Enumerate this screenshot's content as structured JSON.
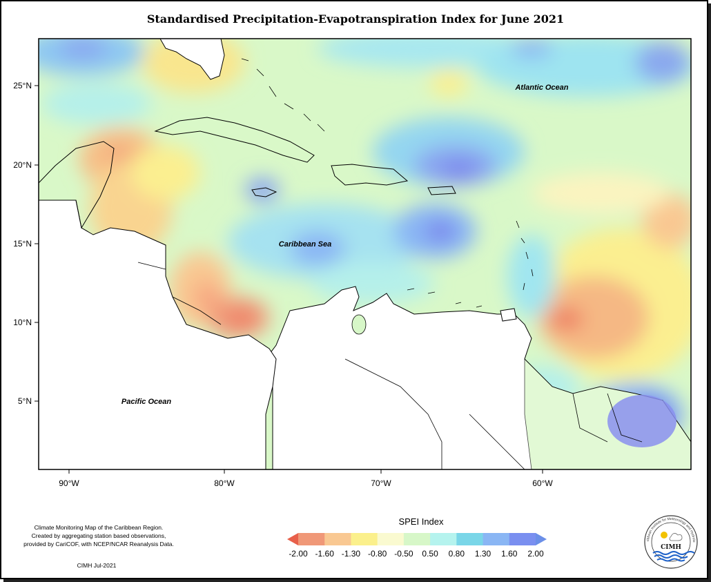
{
  "title": "Standardised Precipitation-Evapotranspiration Index for June 2021",
  "axes": {
    "latitude_labels": [
      "25°N",
      "20°N",
      "15°N",
      "10°N",
      "5°N"
    ],
    "longitude_labels": [
      "90°W",
      "80°W",
      "70°W",
      "60°W"
    ]
  },
  "regions": {
    "atlantic": "Atlantic Ocean",
    "caribbean": "Caribbean Sea",
    "pacific": "Pacific Ocean"
  },
  "legend": {
    "title": "SPEI Index",
    "ticks": [
      "-2.00",
      "-1.60",
      "-1.30",
      "-0.80",
      "-0.50",
      "0.50",
      "0.80",
      "1.30",
      "1.60",
      "2.00"
    ],
    "colors": [
      "#e8604a",
      "#f09878",
      "#f9c892",
      "#fbf08c",
      "#fafad0",
      "#d7f7c8",
      "#b5f3ee",
      "#7ad6e8",
      "#8ab6f4",
      "#7a8ff0",
      "#6b8fe8"
    ]
  },
  "credits": {
    "line1": "Climate Monitoring Map of the Caribbean Region.",
    "line2": "Created by aggregating station based observations,",
    "line3": "provided by CariCOF, with NCEP/NCAR Reanalysis Data.",
    "footer": "CIMH Jul-2021"
  },
  "logo": {
    "acronym": "CIMH",
    "ring_text": "Caribbean Institute for Meteorology and Hydrology"
  }
}
